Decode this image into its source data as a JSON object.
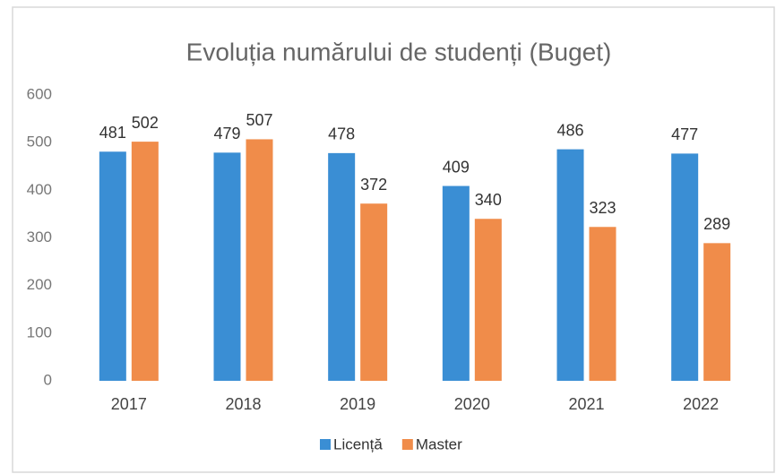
{
  "chart_data": {
    "type": "bar",
    "title": "Evoluția numărului de studenți (Buget)",
    "categories": [
      "2017",
      "2018",
      "2019",
      "2020",
      "2021",
      "2022"
    ],
    "series": [
      {
        "name": "Licență",
        "color": "#3a8ed4",
        "values": [
          481,
          479,
          478,
          409,
          486,
          477
        ]
      },
      {
        "name": "Master",
        "color": "#f08c4a",
        "values": [
          502,
          507,
          372,
          340,
          323,
          289
        ]
      }
    ],
    "ylim": [
      0,
      600
    ],
    "yticks": [
      0,
      100,
      200,
      300,
      400,
      500,
      600
    ],
    "grid": false,
    "legend": "bottom"
  }
}
